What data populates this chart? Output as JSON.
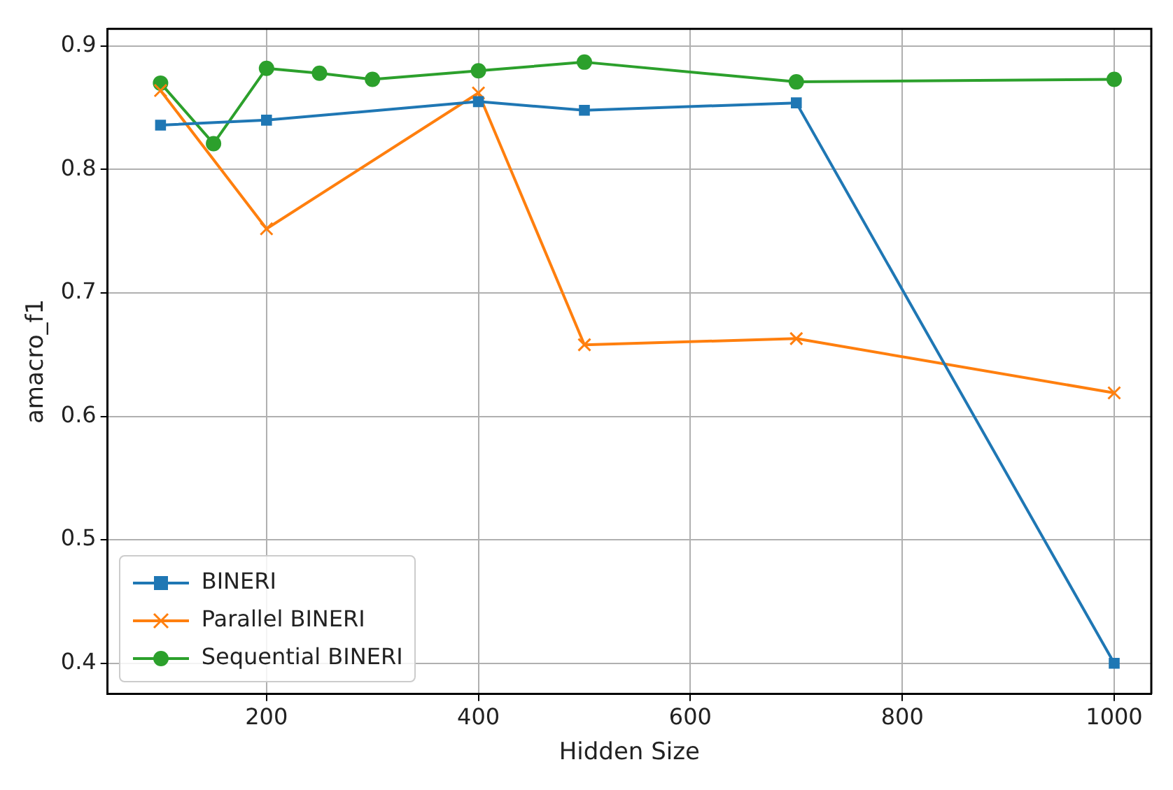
{
  "chart_data": {
    "type": "line",
    "xlabel": "Hidden Size",
    "ylabel": "amacro_f1",
    "xlim": [
      50,
      1035
    ],
    "xticks": [
      200,
      400,
      600,
      800,
      1000
    ],
    "ylim": [
      0.375,
      0.914
    ],
    "yticks": [
      0.4,
      0.5,
      0.6,
      0.7,
      0.8,
      0.9
    ],
    "grid": true,
    "legend": "bottom left",
    "line_style": "solid",
    "series": [
      {
        "name": "BINERI",
        "color": "#1f77b4",
        "marker": "square",
        "x": [
          100,
          200,
          400,
          500,
          700,
          1000
        ],
        "values": [
          0.836,
          0.84,
          0.855,
          0.848,
          0.854,
          0.4
        ]
      },
      {
        "name": "Parallel BINERI",
        "color": "#ff7f0e",
        "marker": "cross",
        "x": [
          100,
          200,
          400,
          500,
          700,
          1000
        ],
        "values": [
          0.864,
          0.752,
          0.862,
          0.658,
          0.663,
          0.619
        ]
      },
      {
        "name": "Sequential BINERI",
        "color": "#2ca02c",
        "marker": "circle",
        "x": [
          100,
          150,
          200,
          250,
          300,
          400,
          500,
          700,
          1000
        ],
        "values": [
          0.87,
          0.821,
          0.882,
          0.878,
          0.873,
          0.88,
          0.887,
          0.871,
          0.873
        ]
      }
    ]
  }
}
